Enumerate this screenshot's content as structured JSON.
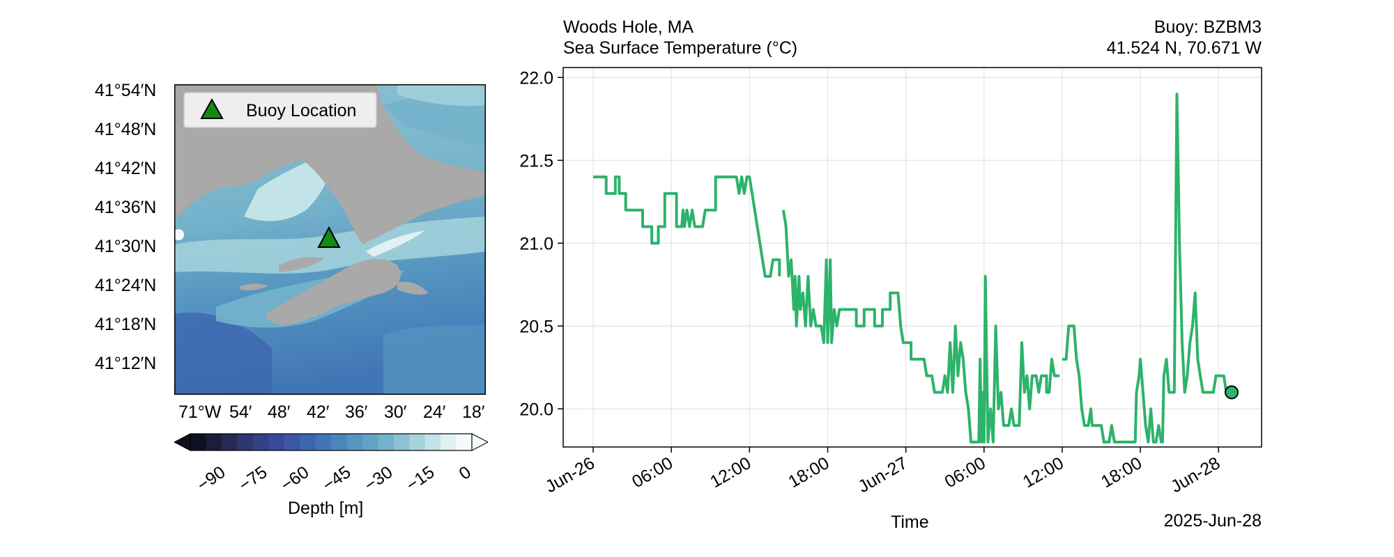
{
  "map": {
    "lat_ticks": [
      "41°54′N",
      "41°48′N",
      "41°42′N",
      "41°36′N",
      "41°30′N",
      "41°24′N",
      "41°18′N",
      "41°12′N"
    ],
    "lon_ticks": [
      "71°W",
      "54′",
      "48′",
      "42′",
      "36′",
      "30′",
      "24′",
      "18′"
    ],
    "legend_label": "Buoy Location",
    "marker_color": "#138a13",
    "land_color": "#a9a9a9"
  },
  "colorbar": {
    "ticks": [
      "−90",
      "−75",
      "−60",
      "−45",
      "−30",
      "−15",
      "0"
    ],
    "label": "Depth [m]",
    "colors": [
      "#0f1020",
      "#1b1d3a",
      "#262a55",
      "#2e3570",
      "#343f86",
      "#37499a",
      "#3a57a8",
      "#3d66b0",
      "#4176b6",
      "#4a85bb",
      "#5595c0",
      "#62a3c5",
      "#74b2cb",
      "#8cc2d2",
      "#a6d3dc",
      "#c2e3e8",
      "#dff1f3",
      "#f3fbfc"
    ]
  },
  "title": {
    "left_line1": "Woods Hole, MA",
    "left_line2": "Sea Surface Temperature (°C)",
    "right_line1": "Buoy: BZBM3",
    "right_line2": "41.524 N, 70.671 W"
  },
  "chart_data": {
    "type": "line",
    "title": "Sea Surface Temperature (°C)",
    "xlabel": "Time",
    "ylabel": "",
    "x_unit": "hours since 2025-06-26 00:00",
    "xlim": [
      -2.3,
      51.3
    ],
    "ylim": [
      19.77,
      22.06
    ],
    "y_ticks": [
      20.0,
      20.5,
      21.0,
      21.5,
      22.0
    ],
    "y_tick_labels": [
      "20.0",
      "20.5",
      "21.0",
      "21.5",
      "22.0"
    ],
    "x_ticks": [
      0,
      6,
      12,
      18,
      24,
      30,
      36,
      42,
      48
    ],
    "x_tick_labels": [
      "Jun-26",
      "06:00",
      "12:00",
      "18:00",
      "Jun-27",
      "06:00",
      "12:00",
      "18:00",
      "Jun-28"
    ],
    "x_offset_label": "2025-Jun-28",
    "grid": true,
    "line_color": "#2db36a",
    "series": [
      {
        "name": "",
        "segments": [
          [
            [
              0,
              21.4
            ],
            [
              1.0,
              21.4
            ],
            [
              1.0,
              21.3
            ],
            [
              1.7,
              21.3
            ],
            [
              1.7,
              21.4
            ],
            [
              2.0,
              21.4
            ],
            [
              2.0,
              21.3
            ],
            [
              2.5,
              21.3
            ],
            [
              2.5,
              21.2
            ],
            [
              3.8,
              21.2
            ],
            [
              3.8,
              21.1
            ],
            [
              4.5,
              21.1
            ],
            [
              4.5,
              21.0
            ],
            [
              5.0,
              21.0
            ],
            [
              5.0,
              21.1
            ],
            [
              5.5,
              21.1
            ],
            [
              5.5,
              21.3
            ],
            [
              6.4,
              21.3
            ],
            [
              6.4,
              21.1
            ],
            [
              6.8,
              21.1
            ],
            [
              6.9,
              21.2
            ],
            [
              7.0,
              21.1
            ],
            [
              7.2,
              21.2
            ],
            [
              7.4,
              21.1
            ],
            [
              7.6,
              21.2
            ],
            [
              7.8,
              21.1
            ],
            [
              8.4,
              21.1
            ],
            [
              8.6,
              21.2
            ],
            [
              9.4,
              21.2
            ],
            [
              9.4,
              21.4
            ],
            [
              11.0,
              21.4
            ],
            [
              11.2,
              21.3
            ],
            [
              11.4,
              21.4
            ],
            [
              11.6,
              21.3
            ],
            [
              11.8,
              21.4
            ],
            [
              12.0,
              21.4
            ],
            [
              12.2,
              21.3
            ],
            [
              12.4,
              21.2
            ],
            [
              12.6,
              21.1
            ],
            [
              12.8,
              21.0
            ],
            [
              13.0,
              20.9
            ],
            [
              13.2,
              20.8
            ],
            [
              13.6,
              20.8
            ],
            [
              13.8,
              20.9
            ],
            [
              14.3,
              20.9
            ],
            [
              14.3,
              20.8
            ]
          ],
          [
            [
              14.6,
              21.2
            ],
            [
              14.8,
              21.1
            ],
            [
              15.0,
              20.8
            ],
            [
              15.2,
              20.9
            ],
            [
              15.4,
              20.6
            ],
            [
              15.5,
              20.8
            ],
            [
              15.6,
              20.5
            ],
            [
              15.8,
              20.8
            ],
            [
              15.9,
              20.6
            ],
            [
              16.1,
              20.7
            ],
            [
              16.3,
              20.5
            ],
            [
              16.5,
              20.8
            ],
            [
              16.7,
              20.5
            ],
            [
              16.9,
              20.6
            ],
            [
              17.1,
              20.5
            ],
            [
              17.5,
              20.5
            ],
            [
              17.7,
              20.4
            ],
            [
              17.9,
              20.9
            ],
            [
              18.0,
              20.4
            ],
            [
              18.2,
              20.9
            ],
            [
              18.3,
              20.4
            ],
            [
              18.5,
              20.6
            ],
            [
              18.7,
              20.5
            ],
            [
              18.9,
              20.6
            ],
            [
              20.2,
              20.6
            ],
            [
              20.2,
              20.5
            ],
            [
              20.8,
              20.5
            ],
            [
              20.8,
              20.6
            ],
            [
              21.6,
              20.6
            ],
            [
              21.6,
              20.5
            ],
            [
              22.2,
              20.5
            ],
            [
              22.2,
              20.6
            ],
            [
              22.8,
              20.6
            ],
            [
              22.8,
              20.7
            ],
            [
              23.4,
              20.7
            ],
            [
              23.6,
              20.5
            ],
            [
              23.8,
              20.4
            ],
            [
              24.4,
              20.4
            ],
            [
              24.4,
              20.3
            ],
            [
              25.4,
              20.3
            ],
            [
              25.6,
              20.2
            ],
            [
              26.0,
              20.2
            ],
            [
              26.2,
              20.1
            ],
            [
              26.8,
              20.1
            ],
            [
              27.0,
              20.2
            ],
            [
              27.2,
              20.1
            ],
            [
              27.4,
              20.4
            ],
            [
              27.6,
              20.1
            ],
            [
              27.8,
              20.5
            ],
            [
              28.0,
              20.2
            ],
            [
              28.2,
              20.4
            ],
            [
              28.4,
              20.3
            ],
            [
              28.6,
              20.1
            ],
            [
              28.8,
              20.0
            ],
            [
              29.0,
              19.8
            ],
            [
              29.6,
              19.8
            ],
            [
              29.7,
              20.3
            ],
            [
              29.8,
              19.8
            ],
            [
              29.9,
              20.1
            ],
            [
              30.0,
              19.8
            ],
            [
              30.1,
              20.8
            ],
            [
              30.3,
              19.8
            ],
            [
              30.5,
              20.0
            ],
            [
              30.7,
              19.8
            ],
            [
              30.9,
              20.5
            ],
            [
              31.1,
              20.0
            ],
            [
              31.3,
              20.1
            ],
            [
              31.5,
              19.9
            ],
            [
              31.9,
              19.9
            ],
            [
              32.1,
              20.0
            ],
            [
              32.3,
              19.9
            ],
            [
              32.7,
              19.9
            ],
            [
              32.9,
              20.4
            ],
            [
              33.1,
              20.1
            ],
            [
              33.3,
              20.2
            ],
            [
              33.5,
              20.0
            ],
            [
              33.7,
              20.2
            ],
            [
              34.0,
              20.2
            ],
            [
              34.2,
              20.1
            ],
            [
              34.4,
              20.2
            ],
            [
              34.8,
              20.2
            ],
            [
              34.8,
              20.1
            ],
            [
              35.0,
              20.1
            ],
            [
              35.2,
              20.3
            ],
            [
              35.4,
              20.2
            ],
            [
              35.8,
              20.2
            ]
          ],
          [
            [
              36.0,
              20.3
            ],
            [
              36.3,
              20.3
            ],
            [
              36.5,
              20.5
            ],
            [
              36.9,
              20.5
            ],
            [
              37.1,
              20.3
            ],
            [
              37.3,
              20.2
            ],
            [
              37.5,
              20.0
            ],
            [
              37.7,
              19.9
            ],
            [
              38.0,
              19.9
            ],
            [
              38.2,
              20.0
            ],
            [
              38.3,
              19.9
            ],
            [
              39.0,
              19.9
            ],
            [
              39.2,
              19.8
            ],
            [
              39.6,
              19.8
            ],
            [
              39.8,
              19.9
            ],
            [
              40.0,
              19.8
            ],
            [
              41.6,
              19.8
            ],
            [
              41.7,
              20.1
            ],
            [
              41.9,
              20.2
            ],
            [
              42.0,
              20.3
            ],
            [
              42.2,
              20.1
            ],
            [
              42.4,
              19.9
            ],
            [
              42.6,
              19.8
            ],
            [
              42.8,
              20.0
            ],
            [
              43.0,
              19.8
            ],
            [
              43.2,
              19.8
            ],
            [
              43.4,
              19.9
            ],
            [
              43.6,
              19.8
            ],
            [
              43.7,
              19.8
            ],
            [
              43.8,
              20.2
            ],
            [
              44.0,
              20.3
            ],
            [
              44.2,
              20.1
            ],
            [
              44.6,
              20.1
            ],
            [
              44.8,
              21.9
            ],
            [
              45.0,
              21.0
            ],
            [
              45.2,
              20.4
            ],
            [
              45.4,
              20.1
            ],
            [
              45.6,
              20.2
            ],
            [
              45.8,
              20.4
            ],
            [
              46.0,
              20.5
            ],
            [
              46.2,
              20.7
            ],
            [
              46.4,
              20.3
            ],
            [
              46.6,
              20.2
            ],
            [
              46.8,
              20.1
            ],
            [
              47.6,
              20.1
            ],
            [
              47.8,
              20.2
            ],
            [
              48.4,
              20.2
            ],
            [
              48.6,
              20.1
            ]
          ]
        ]
      }
    ],
    "last_point": [
      49.0,
      20.1
    ],
    "last_point_color": "#2db36a"
  }
}
